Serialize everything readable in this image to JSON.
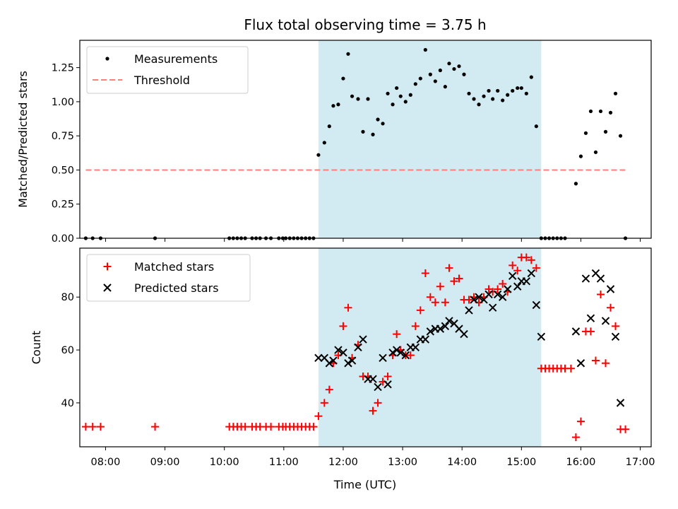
{
  "chart_data": {
    "type": "scatter",
    "title": "Flux total observing time = 3.75 h",
    "xlabel": "Time (UTC)",
    "x_unit": "UTC hours",
    "xlim": [
      "07:34",
      "17:11"
    ],
    "x_tick_labels": [
      "08:00",
      "09:00",
      "10:00",
      "11:00",
      "12:00",
      "13:00",
      "14:00",
      "15:00",
      "16:00",
      "17:00"
    ],
    "shaded_interval": {
      "start": "11:35",
      "end": "15:20",
      "color": "#add8e6"
    },
    "panels": [
      {
        "ylabel": "Matched/Predicted stars",
        "ylim": [
          0,
          1.45
        ],
        "y_tick_labels": [
          "0.00",
          "0.25",
          "0.50",
          "0.75",
          "1.00",
          "1.25"
        ],
        "legend_position": "upper-left",
        "series": [
          {
            "name": "Measurements",
            "marker": "dot",
            "color": "#000000",
            "points": [
              [
                "07:40",
                0
              ],
              [
                "07:47",
                0
              ],
              [
                "07:55",
                0
              ],
              [
                "08:50",
                0
              ],
              [
                "10:05",
                0
              ],
              [
                "10:09",
                0
              ],
              [
                "10:13",
                0
              ],
              [
                "10:17",
                0
              ],
              [
                "10:21",
                0
              ],
              [
                "10:28",
                0
              ],
              [
                "10:32",
                0
              ],
              [
                "10:36",
                0
              ],
              [
                "10:42",
                0
              ],
              [
                "10:47",
                0
              ],
              [
                "10:55",
                0
              ],
              [
                "10:59",
                0
              ],
              [
                "11:02",
                0
              ],
              [
                "11:06",
                0
              ],
              [
                "11:10",
                0
              ],
              [
                "11:14",
                0
              ],
              [
                "11:18",
                0
              ],
              [
                "11:22",
                0
              ],
              [
                "11:26",
                0
              ],
              [
                "11:30",
                0
              ],
              [
                "11:35",
                0.61
              ],
              [
                "11:41",
                0.7
              ],
              [
                "11:46",
                0.82
              ],
              [
                "11:50",
                0.97
              ],
              [
                "11:55",
                0.98
              ],
              [
                "12:00",
                1.17
              ],
              [
                "12:05",
                1.35
              ],
              [
                "12:09",
                1.04
              ],
              [
                "12:15",
                1.02
              ],
              [
                "12:20",
                0.78
              ],
              [
                "12:25",
                1.02
              ],
              [
                "12:30",
                0.76
              ],
              [
                "12:35",
                0.87
              ],
              [
                "12:40",
                0.84
              ],
              [
                "12:45",
                1.06
              ],
              [
                "12:50",
                0.98
              ],
              [
                "12:54",
                1.1
              ],
              [
                "12:58",
                1.04
              ],
              [
                "13:03",
                1.0
              ],
              [
                "13:08",
                1.05
              ],
              [
                "13:13",
                1.13
              ],
              [
                "13:18",
                1.17
              ],
              [
                "13:23",
                1.38
              ],
              [
                "13:28",
                1.2
              ],
              [
                "13:33",
                1.15
              ],
              [
                "13:38",
                1.23
              ],
              [
                "13:43",
                1.11
              ],
              [
                "13:47",
                1.28
              ],
              [
                "13:52",
                1.24
              ],
              [
                "13:57",
                1.26
              ],
              [
                "14:02",
                1.2
              ],
              [
                "14:07",
                1.06
              ],
              [
                "14:12",
                1.02
              ],
              [
                "14:17",
                0.98
              ],
              [
                "14:22",
                1.04
              ],
              [
                "14:27",
                1.08
              ],
              [
                "14:31",
                1.02
              ],
              [
                "14:36",
                1.08
              ],
              [
                "14:41",
                1.01
              ],
              [
                "14:46",
                1.05
              ],
              [
                "14:51",
                1.08
              ],
              [
                "14:56",
                1.1
              ],
              [
                "15:00",
                1.1
              ],
              [
                "15:05",
                1.06
              ],
              [
                "15:10",
                1.18
              ],
              [
                "15:15",
                0.82
              ],
              [
                "15:20",
                0
              ],
              [
                "15:24",
                0
              ],
              [
                "15:28",
                0
              ],
              [
                "15:32",
                0
              ],
              [
                "15:36",
                0
              ],
              [
                "15:40",
                0
              ],
              [
                "15:44",
                0
              ],
              [
                "15:55",
                0.4
              ],
              [
                "16:00",
                0.6
              ],
              [
                "16:05",
                0.77
              ],
              [
                "16:10",
                0.93
              ],
              [
                "16:15",
                0.63
              ],
              [
                "16:20",
                0.93
              ],
              [
                "16:25",
                0.78
              ],
              [
                "16:30",
                0.92
              ],
              [
                "16:35",
                1.06
              ],
              [
                "16:40",
                0.75
              ],
              [
                "16:45",
                0
              ]
            ]
          },
          {
            "name": "Threshold",
            "marker": "dashed-line",
            "color": "#ff7f7f",
            "points": [
              [
                "07:40",
                0.5
              ],
              [
                "16:45",
                0.5
              ]
            ]
          }
        ]
      },
      {
        "ylabel": "Count",
        "ylim": [
          23.4,
          98.5
        ],
        "y_tick_labels": [
          "40",
          "60",
          "80"
        ],
        "legend_position": "upper-left",
        "series": [
          {
            "name": "Matched stars",
            "marker": "plus",
            "color": "#ff0000",
            "points": [
              [
                "07:40",
                31
              ],
              [
                "07:47",
                31
              ],
              [
                "07:55",
                31
              ],
              [
                "08:50",
                31
              ],
              [
                "10:05",
                31
              ],
              [
                "10:09",
                31
              ],
              [
                "10:13",
                31
              ],
              [
                "10:17",
                31
              ],
              [
                "10:21",
                31
              ],
              [
                "10:28",
                31
              ],
              [
                "10:32",
                31
              ],
              [
                "10:36",
                31
              ],
              [
                "10:42",
                31
              ],
              [
                "10:47",
                31
              ],
              [
                "10:55",
                31
              ],
              [
                "10:59",
                31
              ],
              [
                "11:02",
                31
              ],
              [
                "11:06",
                31
              ],
              [
                "11:10",
                31
              ],
              [
                "11:14",
                31
              ],
              [
                "11:18",
                31
              ],
              [
                "11:22",
                31
              ],
              [
                "11:26",
                31
              ],
              [
                "11:30",
                31
              ],
              [
                "11:35",
                35
              ],
              [
                "11:41",
                40
              ],
              [
                "11:46",
                45
              ],
              [
                "11:50",
                55
              ],
              [
                "11:55",
                58
              ],
              [
                "12:00",
                69
              ],
              [
                "12:05",
                76
              ],
              [
                "12:09",
                57
              ],
              [
                "12:15",
                62
              ],
              [
                "12:20",
                50
              ],
              [
                "12:25",
                50
              ],
              [
                "12:30",
                37
              ],
              [
                "12:35",
                40
              ],
              [
                "12:40",
                48
              ],
              [
                "12:45",
                50
              ],
              [
                "12:50",
                58
              ],
              [
                "12:54",
                66
              ],
              [
                "12:58",
                60
              ],
              [
                "13:03",
                58
              ],
              [
                "13:08",
                58
              ],
              [
                "13:13",
                69
              ],
              [
                "13:18",
                75
              ],
              [
                "13:23",
                89
              ],
              [
                "13:28",
                80
              ],
              [
                "13:33",
                78
              ],
              [
                "13:38",
                84
              ],
              [
                "13:43",
                78
              ],
              [
                "13:47",
                91
              ],
              [
                "13:52",
                86
              ],
              [
                "13:57",
                87
              ],
              [
                "14:02",
                79
              ],
              [
                "14:07",
                79
              ],
              [
                "14:12",
                80
              ],
              [
                "14:17",
                78
              ],
              [
                "14:22",
                80
              ],
              [
                "14:27",
                83
              ],
              [
                "14:31",
                82
              ],
              [
                "14:36",
                83
              ],
              [
                "14:41",
                85
              ],
              [
                "14:46",
                82
              ],
              [
                "14:51",
                92
              ],
              [
                "14:56",
                90
              ],
              [
                "15:00",
                95
              ],
              [
                "15:05",
                95
              ],
              [
                "15:10",
                94
              ],
              [
                "15:15",
                91
              ],
              [
                "15:20",
                53
              ],
              [
                "15:24",
                53
              ],
              [
                "15:28",
                53
              ],
              [
                "15:32",
                53
              ],
              [
                "15:36",
                53
              ],
              [
                "15:40",
                53
              ],
              [
                "15:44",
                53
              ],
              [
                "15:50",
                53
              ],
              [
                "15:55",
                27
              ],
              [
                "16:00",
                33
              ],
              [
                "16:05",
                67
              ],
              [
                "16:10",
                67
              ],
              [
                "16:15",
                56
              ],
              [
                "16:20",
                81
              ],
              [
                "16:25",
                55
              ],
              [
                "16:30",
                76
              ],
              [
                "16:35",
                69
              ],
              [
                "16:40",
                30
              ],
              [
                "16:45",
                30
              ]
            ]
          },
          {
            "name": "Predicted stars",
            "marker": "x",
            "color": "#000000",
            "points": [
              [
                "11:35",
                57
              ],
              [
                "11:41",
                57
              ],
              [
                "11:46",
                55
              ],
              [
                "11:50",
                56
              ],
              [
                "11:55",
                60
              ],
              [
                "12:00",
                59
              ],
              [
                "12:05",
                55
              ],
              [
                "12:09",
                56
              ],
              [
                "12:15",
                61
              ],
              [
                "12:20",
                64
              ],
              [
                "12:25",
                49
              ],
              [
                "12:30",
                49
              ],
              [
                "12:35",
                46
              ],
              [
                "12:40",
                57
              ],
              [
                "12:45",
                47
              ],
              [
                "12:50",
                59
              ],
              [
                "12:54",
                60
              ],
              [
                "12:58",
                59
              ],
              [
                "13:03",
                58
              ],
              [
                "13:08",
                61
              ],
              [
                "13:13",
                61
              ],
              [
                "13:18",
                64
              ],
              [
                "13:23",
                64
              ],
              [
                "13:28",
                67
              ],
              [
                "13:33",
                68
              ],
              [
                "13:38",
                68
              ],
              [
                "13:43",
                69
              ],
              [
                "13:47",
                71
              ],
              [
                "13:52",
                70
              ],
              [
                "13:57",
                68
              ],
              [
                "14:02",
                66
              ],
              [
                "14:07",
                75
              ],
              [
                "14:12",
                79
              ],
              [
                "14:17",
                80
              ],
              [
                "14:22",
                79
              ],
              [
                "14:27",
                81
              ],
              [
                "14:31",
                76
              ],
              [
                "14:36",
                81
              ],
              [
                "14:41",
                80
              ],
              [
                "14:46",
                83
              ],
              [
                "14:51",
                88
              ],
              [
                "14:56",
                84
              ],
              [
                "15:00",
                86
              ],
              [
                "15:05",
                86
              ],
              [
                "15:10",
                89
              ],
              [
                "15:15",
                77
              ],
              [
                "15:20",
                65
              ],
              [
                "15:55",
                67
              ],
              [
                "16:00",
                55
              ],
              [
                "16:05",
                87
              ],
              [
                "16:10",
                72
              ],
              [
                "16:15",
                89
              ],
              [
                "16:20",
                87
              ],
              [
                "16:25",
                71
              ],
              [
                "16:30",
                83
              ],
              [
                "16:35",
                65
              ],
              [
                "16:40",
                40
              ]
            ]
          }
        ]
      }
    ]
  }
}
